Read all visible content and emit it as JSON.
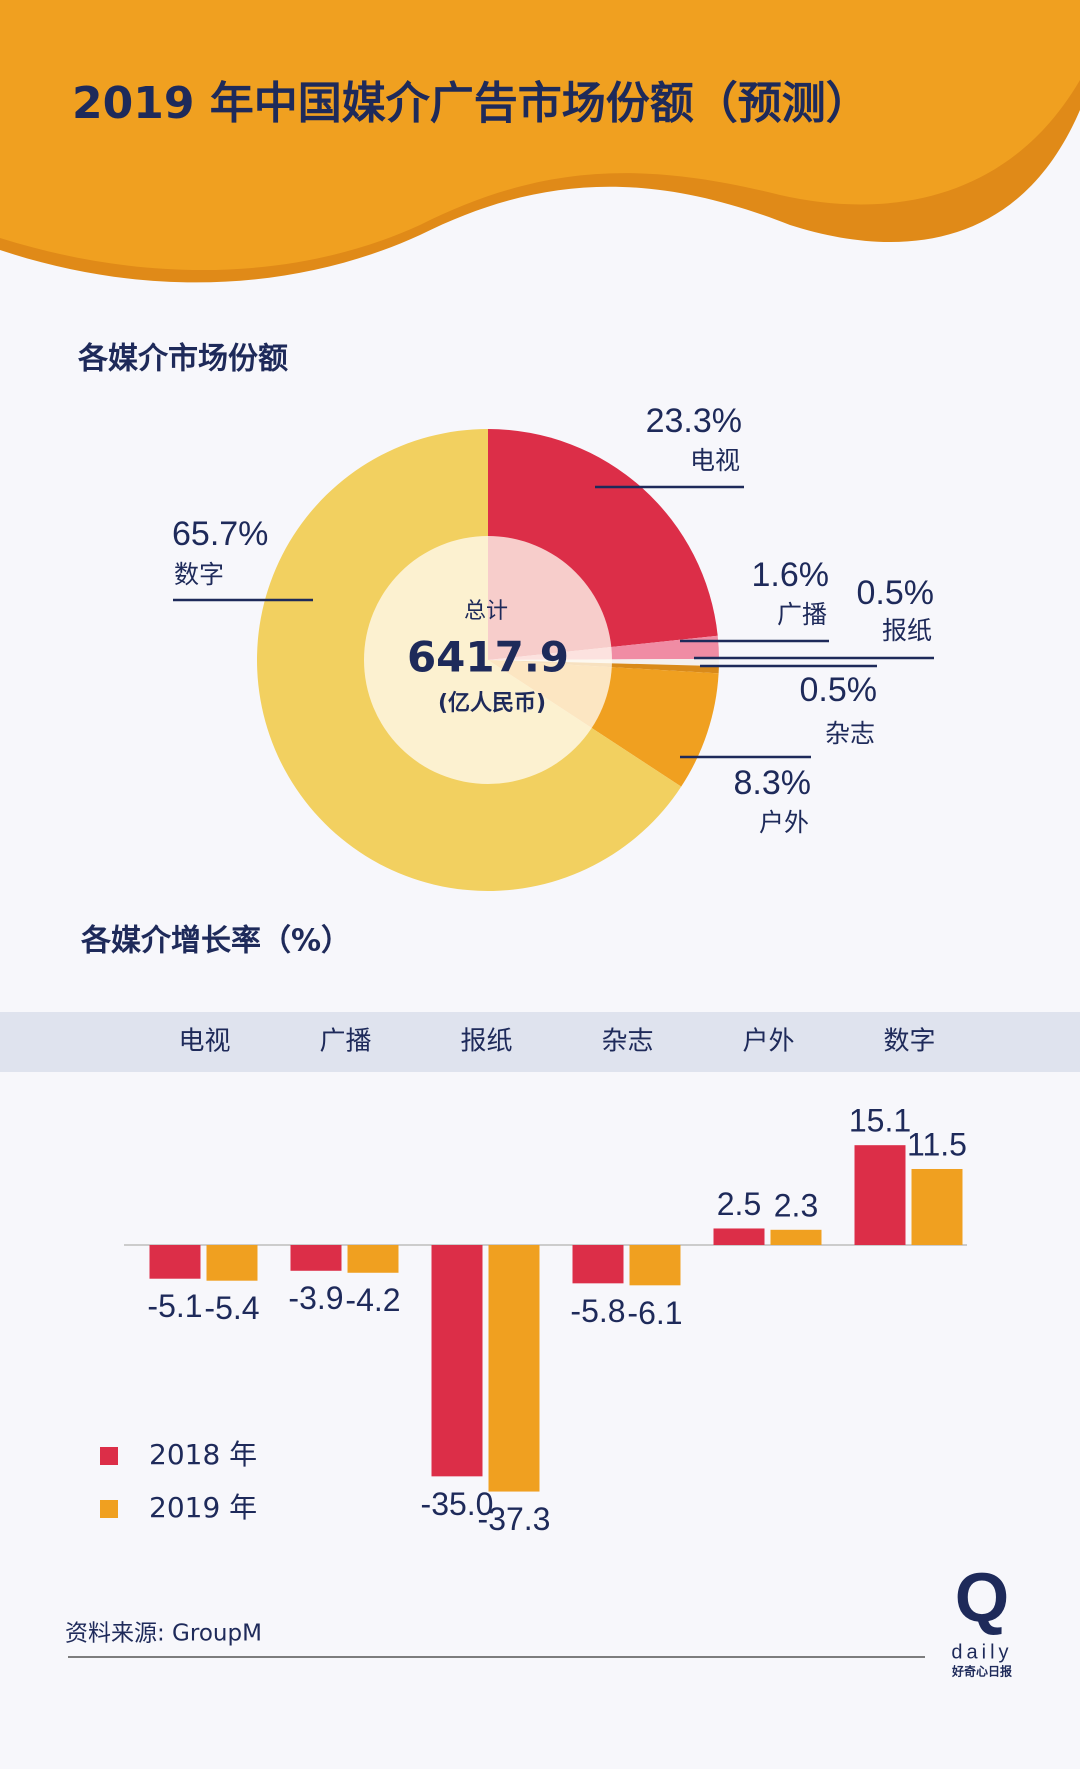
{
  "title": "2019 年中国媒介广告市场份额（预测）",
  "source": "资料来源: GroupM",
  "logo": {
    "mark": "Q",
    "word": "daily",
    "name": "好奇心日报"
  },
  "chart_data": [
    {
      "type": "pie",
      "title": "各媒介市场份额",
      "categories": [
        "电视",
        "广播",
        "报纸",
        "杂志",
        "户外",
        "数字"
      ],
      "values": [
        23.3,
        1.6,
        0.5,
        0.5,
        8.3,
        65.7
      ],
      "value_labels": [
        "23.3%",
        "1.6%",
        "0.5%",
        "0.5%",
        "8.3%",
        "65.7%"
      ],
      "colors": [
        "#dc2e48",
        "#f08ca4",
        "#f4f0ee",
        "#d98a1a",
        "#f0a020",
        "#f2d060"
      ],
      "center_label": "总计",
      "total": 6417.9,
      "total_unit": "(亿人民币)"
    },
    {
      "type": "bar",
      "title": "各媒介增长率（%）",
      "categories": [
        "电视",
        "广播",
        "报纸",
        "杂志",
        "户外",
        "数字"
      ],
      "series": [
        {
          "name": "2018 年",
          "color": "#dc2e48",
          "values": [
            -5.1,
            -3.9,
            -35.0,
            -5.8,
            2.5,
            15.1
          ],
          "value_labels": [
            "-5.1",
            "-3.9",
            "-35.0",
            "-5.8",
            "2.5",
            "15.1"
          ]
        },
        {
          "name": "2019 年",
          "color": "#f0a020",
          "values": [
            -5.4,
            -4.2,
            -37.3,
            -6.1,
            2.3,
            11.5
          ],
          "value_labels": [
            "-5.4",
            "-4.2",
            "-37.3",
            "-6.1",
            "2.3",
            "11.5"
          ]
        }
      ]
    }
  ]
}
